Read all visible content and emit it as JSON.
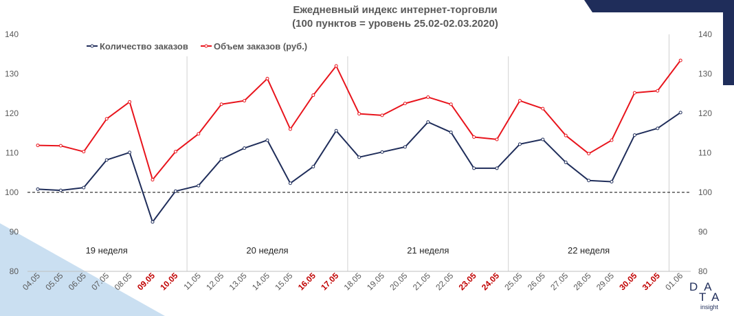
{
  "title_line1": "Ежедневный индекс интернет-торговли",
  "title_line2": "(100 пунктов = уровень 25.02-02.03.2020)",
  "logo": {
    "line1": "DA",
    "line2": "TA",
    "line3": "insight"
  },
  "colors": {
    "orders_count": "#1f2d5a",
    "orders_volume": "#e8141c",
    "highlight_date": "#c00000",
    "tick": "#595959"
  },
  "chart_data": {
    "type": "line",
    "categories": [
      "04.05",
      "05.05",
      "06.05",
      "07.05",
      "08.05",
      "09.05",
      "10.05",
      "11.05",
      "12.05",
      "13.05",
      "14.05",
      "15.05",
      "16.05",
      "17.05",
      "18.05",
      "19.05",
      "20.05",
      "21.05",
      "22.05",
      "23.05",
      "24.05",
      "25.05",
      "26.05",
      "27.05",
      "28.05",
      "29.05",
      "30.05",
      "31.05",
      "01.06"
    ],
    "highlighted_categories": [
      "09.05",
      "10.05",
      "16.05",
      "17.05",
      "23.05",
      "24.05",
      "30.05",
      "31.05"
    ],
    "series": [
      {
        "name": "Количество заказов",
        "color": "#1f2d5a",
        "values": [
          100.8,
          100.5,
          101.2,
          108.2,
          110.1,
          92.5,
          100.3,
          101.7,
          108.4,
          111.2,
          113.2,
          102.3,
          106.5,
          115.6,
          108.9,
          110.2,
          111.5,
          117.8,
          115.2,
          106.1,
          106.1,
          112.2,
          113.4,
          107.6,
          103.0,
          102.7,
          114.5,
          116.2,
          120.2
        ]
      },
      {
        "name": "Объем заказов (руб.)",
        "color": "#e8141c",
        "values": [
          111.9,
          111.8,
          110.3,
          118.6,
          122.9,
          103.2,
          110.3,
          114.8,
          122.3,
          123.2,
          128.8,
          116.0,
          124.6,
          132.0,
          119.9,
          119.5,
          122.5,
          124.1,
          122.3,
          114.0,
          113.4,
          123.2,
          121.2,
          114.4,
          109.8,
          113.2,
          125.2,
          125.7,
          133.4
        ]
      }
    ],
    "ylim": [
      80,
      140
    ],
    "y_ticks": [
      80,
      90,
      100,
      110,
      120,
      130,
      140
    ],
    "y_axis": "both",
    "reference_line": 100,
    "legend_position": "top-left",
    "weeks": [
      {
        "label": "19 неделя",
        "from": 0,
        "to": 6
      },
      {
        "label": "20 неделя",
        "from": 7,
        "to": 13
      },
      {
        "label": "21 неделя",
        "from": 14,
        "to": 20
      },
      {
        "label": "22 неделя",
        "from": 21,
        "to": 27
      }
    ]
  }
}
